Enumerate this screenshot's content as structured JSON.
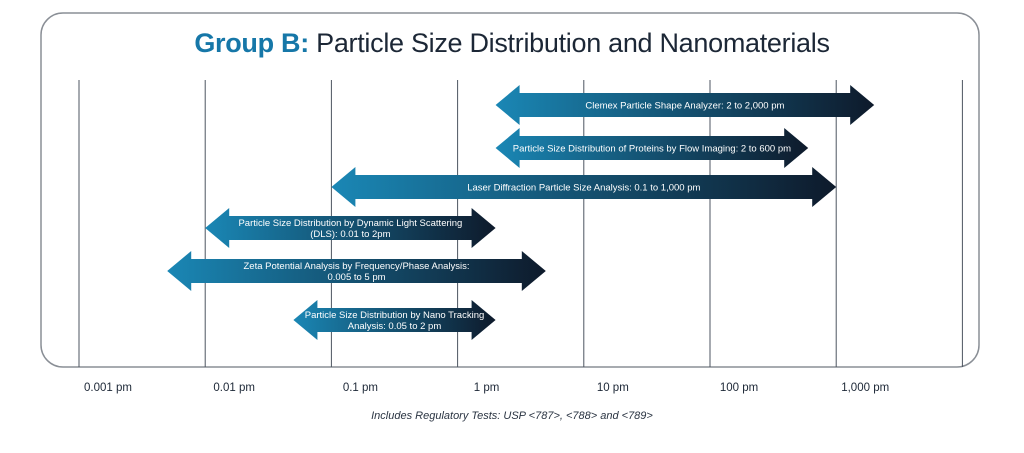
{
  "title": {
    "highlight": "Group B:",
    "rest": " Particle Size Distribution and Nanomaterials"
  },
  "axis": {
    "ticks": [
      "0.001 pm",
      "0.01 pm",
      "0.1 pm",
      "1 pm",
      "10 pm",
      "100 pm",
      "1,000 pm"
    ],
    "values": [
      0.001,
      0.01,
      0.1,
      1,
      10,
      100,
      1000,
      10000
    ],
    "scale": "log"
  },
  "ranges": [
    {
      "label": [
        "Clemex Particle Shape Analyzer: 2 to 2,000 pm"
      ],
      "from": 2,
      "to": 2000
    },
    {
      "label": [
        "Particle Size Distribution of Proteins by Flow Imaging: 2 to 600 pm"
      ],
      "from": 2,
      "to": 600
    },
    {
      "label": [
        "Laser Diffraction Particle Size Analysis: 0.1 to 1,000 pm"
      ],
      "from": 0.1,
      "to": 1000
    },
    {
      "label": [
        "Particle Size Distribution by Dynamic Light Scattering",
        "(DLS): 0.01 to 2pm"
      ],
      "from": 0.01,
      "to": 2
    },
    {
      "label": [
        "Zeta Potential Analysis by Frequency/Phase Analysis:",
        "0.005 to 5 pm"
      ],
      "from": 0.005,
      "to": 5
    },
    {
      "label": [
        "Particle Size Distribution by Nano Tracking",
        "Analysis: 0.05 to 2 pm"
      ],
      "from": 0.05,
      "to": 2
    }
  ],
  "footnote": "Includes Regulatory Tests: USP <787>, <788> and <789>",
  "colors": {
    "accent": "#1677a8",
    "arrow_start": "#1a87b5",
    "arrow_end": "#0e1a2b",
    "frame": "#8a8f96",
    "grid": "#4d5560"
  }
}
